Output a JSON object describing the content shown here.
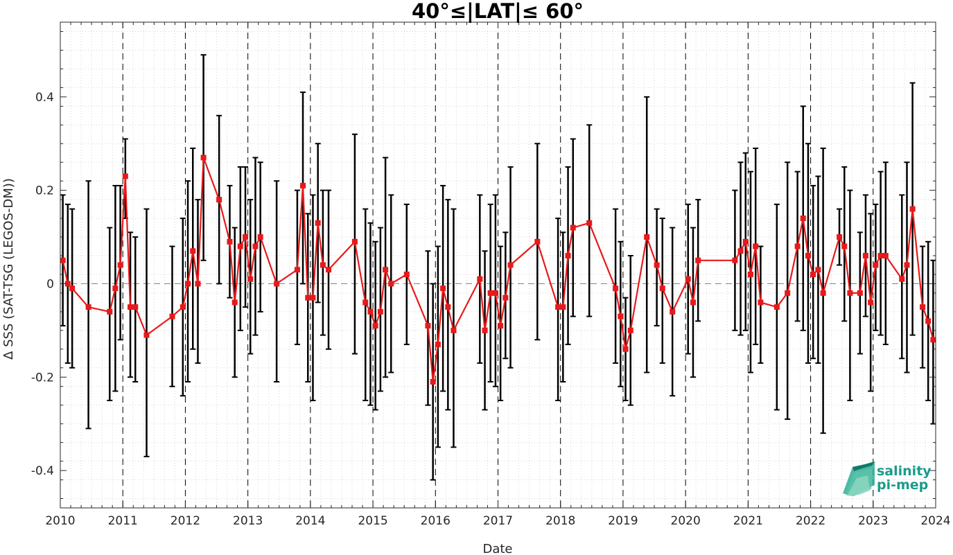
{
  "chart_data": {
    "type": "line",
    "title": "40°≤|LAT|≤ 60°",
    "xlabel": "Date",
    "ylabel": "Δ SSS (SAT-TSG (LEGOS-DM))",
    "xlim": [
      2010,
      2024
    ],
    "ylim": [
      -0.48,
      0.56
    ],
    "x_ticks": [
      2010,
      2011,
      2012,
      2013,
      2014,
      2015,
      2016,
      2017,
      2018,
      2019,
      2020,
      2021,
      2022,
      2023,
      2024
    ],
    "x_tick_labels": [
      "2010",
      "2011",
      "2012",
      "2013",
      "2014",
      "2015",
      "2016",
      "2017",
      "2018",
      "2019",
      "2020",
      "2021",
      "2022",
      "2023",
      "2024"
    ],
    "y_ticks": [
      -0.4,
      -0.2,
      0,
      0.2,
      0.4
    ],
    "y_tick_labels": [
      "-0.4",
      "-0.2",
      "0",
      "0.2",
      "0.4"
    ],
    "grid": "minor dotted",
    "year_boundaries": "dashed vertical lines at each year",
    "zero_line": "dashed horizontal at 0",
    "line_color": "#e8191a",
    "errorbar_color": "#000000",
    "series": [
      {
        "points": [
          {
            "x": 2010.04,
            "y": 0.05,
            "lo": -0.09,
            "hi": 0.19
          },
          {
            "x": 2010.12,
            "y": 0.0,
            "lo": -0.17,
            "hi": 0.17
          },
          {
            "x": 2010.19,
            "y": -0.01,
            "lo": -0.18,
            "hi": 0.16
          },
          {
            "x": 2010.45,
            "y": -0.05,
            "lo": -0.31,
            "hi": 0.22
          },
          {
            "x": 2010.79,
            "y": -0.06,
            "lo": -0.25,
            "hi": 0.12
          },
          {
            "x": 2010.88,
            "y": -0.01,
            "lo": -0.23,
            "hi": 0.21
          },
          {
            "x": 2010.96,
            "y": 0.04,
            "lo": -0.12,
            "hi": 0.21
          },
          {
            "x": 2011.04,
            "y": 0.23,
            "lo": 0.14,
            "hi": 0.31
          },
          {
            "x": 2011.12,
            "y": -0.05,
            "lo": -0.2,
            "hi": 0.11
          },
          {
            "x": 2011.2,
            "y": -0.05,
            "lo": -0.21,
            "hi": 0.1
          },
          {
            "x": 2011.38,
            "y": -0.11,
            "lo": -0.37,
            "hi": 0.16
          },
          {
            "x": 2011.79,
            "y": -0.07,
            "lo": -0.22,
            "hi": 0.08
          },
          {
            "x": 2011.96,
            "y": -0.05,
            "lo": -0.24,
            "hi": 0.14
          },
          {
            "x": 2012.04,
            "y": 0.0,
            "lo": -0.21,
            "hi": 0.22
          },
          {
            "x": 2012.12,
            "y": 0.07,
            "lo": -0.14,
            "hi": 0.29
          },
          {
            "x": 2012.2,
            "y": 0.0,
            "lo": -0.17,
            "hi": 0.18
          },
          {
            "x": 2012.29,
            "y": 0.27,
            "lo": 0.05,
            "hi": 0.49
          },
          {
            "x": 2012.54,
            "y": 0.18,
            "lo": 0.0,
            "hi": 0.36
          },
          {
            "x": 2012.71,
            "y": 0.09,
            "lo": -0.03,
            "hi": 0.21
          },
          {
            "x": 2012.79,
            "y": -0.04,
            "lo": -0.2,
            "hi": 0.12
          },
          {
            "x": 2012.88,
            "y": 0.08,
            "lo": -0.1,
            "hi": 0.25
          },
          {
            "x": 2012.96,
            "y": 0.1,
            "lo": -0.05,
            "hi": 0.25
          },
          {
            "x": 2013.04,
            "y": 0.01,
            "lo": -0.15,
            "hi": 0.18
          },
          {
            "x": 2013.12,
            "y": 0.08,
            "lo": -0.11,
            "hi": 0.27
          },
          {
            "x": 2013.2,
            "y": 0.1,
            "lo": -0.06,
            "hi": 0.26
          },
          {
            "x": 2013.46,
            "y": 0.0,
            "lo": -0.21,
            "hi": 0.22
          },
          {
            "x": 2013.79,
            "y": 0.03,
            "lo": -0.13,
            "hi": 0.2
          },
          {
            "x": 2013.88,
            "y": 0.21,
            "lo": 0.0,
            "hi": 0.41
          },
          {
            "x": 2013.96,
            "y": -0.03,
            "lo": -0.21,
            "hi": 0.15
          },
          {
            "x": 2014.04,
            "y": -0.03,
            "lo": -0.25,
            "hi": 0.19
          },
          {
            "x": 2014.12,
            "y": 0.13,
            "lo": -0.04,
            "hi": 0.3
          },
          {
            "x": 2014.2,
            "y": 0.04,
            "lo": -0.11,
            "hi": 0.2
          },
          {
            "x": 2014.29,
            "y": 0.03,
            "lo": -0.14,
            "hi": 0.2
          },
          {
            "x": 2014.71,
            "y": 0.09,
            "lo": -0.15,
            "hi": 0.32
          },
          {
            "x": 2014.88,
            "y": -0.04,
            "lo": -0.25,
            "hi": 0.16
          },
          {
            "x": 2014.96,
            "y": -0.06,
            "lo": -0.26,
            "hi": 0.13
          },
          {
            "x": 2015.04,
            "y": -0.09,
            "lo": -0.27,
            "hi": 0.09
          },
          {
            "x": 2015.12,
            "y": -0.06,
            "lo": -0.23,
            "hi": 0.12
          },
          {
            "x": 2015.2,
            "y": 0.03,
            "lo": -0.2,
            "hi": 0.27
          },
          {
            "x": 2015.29,
            "y": 0.0,
            "lo": -0.19,
            "hi": 0.19
          },
          {
            "x": 2015.54,
            "y": 0.02,
            "lo": -0.13,
            "hi": 0.17
          },
          {
            "x": 2015.88,
            "y": -0.09,
            "lo": -0.26,
            "hi": 0.07
          },
          {
            "x": 2015.96,
            "y": -0.21,
            "lo": -0.42,
            "hi": 0.0
          },
          {
            "x": 2016.04,
            "y": -0.13,
            "lo": -0.35,
            "hi": 0.08
          },
          {
            "x": 2016.12,
            "y": -0.01,
            "lo": -0.23,
            "hi": 0.21
          },
          {
            "x": 2016.2,
            "y": -0.05,
            "lo": -0.27,
            "hi": 0.18
          },
          {
            "x": 2016.29,
            "y": -0.1,
            "lo": -0.35,
            "hi": 0.16
          },
          {
            "x": 2016.71,
            "y": 0.01,
            "lo": -0.17,
            "hi": 0.19
          },
          {
            "x": 2016.79,
            "y": -0.1,
            "lo": -0.27,
            "hi": 0.07
          },
          {
            "x": 2016.88,
            "y": -0.02,
            "lo": -0.21,
            "hi": 0.17
          },
          {
            "x": 2016.96,
            "y": -0.02,
            "lo": -0.22,
            "hi": 0.19
          },
          {
            "x": 2017.04,
            "y": -0.09,
            "lo": -0.25,
            "hi": 0.08
          },
          {
            "x": 2017.12,
            "y": -0.03,
            "lo": -0.16,
            "hi": 0.11
          },
          {
            "x": 2017.2,
            "y": 0.04,
            "lo": -0.18,
            "hi": 0.25
          },
          {
            "x": 2017.63,
            "y": 0.09,
            "lo": -0.12,
            "hi": 0.3
          },
          {
            "x": 2017.96,
            "y": -0.05,
            "lo": -0.25,
            "hi": 0.14
          },
          {
            "x": 2018.04,
            "y": -0.05,
            "lo": -0.21,
            "hi": 0.11
          },
          {
            "x": 2018.12,
            "y": 0.06,
            "lo": -0.13,
            "hi": 0.25
          },
          {
            "x": 2018.2,
            "y": 0.12,
            "lo": -0.07,
            "hi": 0.31
          },
          {
            "x": 2018.46,
            "y": 0.13,
            "lo": -0.07,
            "hi": 0.34
          },
          {
            "x": 2018.88,
            "y": -0.01,
            "lo": -0.17,
            "hi": 0.16
          },
          {
            "x": 2018.96,
            "y": -0.07,
            "lo": -0.22,
            "hi": 0.09
          },
          {
            "x": 2019.04,
            "y": -0.14,
            "lo": -0.25,
            "hi": -0.03
          },
          {
            "x": 2019.12,
            "y": -0.1,
            "lo": -0.26,
            "hi": 0.06
          },
          {
            "x": 2019.38,
            "y": 0.1,
            "lo": -0.19,
            "hi": 0.4
          },
          {
            "x": 2019.54,
            "y": 0.04,
            "lo": -0.09,
            "hi": 0.16
          },
          {
            "x": 2019.63,
            "y": -0.01,
            "lo": -0.17,
            "hi": 0.14
          },
          {
            "x": 2019.79,
            "y": -0.06,
            "lo": -0.24,
            "hi": 0.12
          },
          {
            "x": 2020.04,
            "y": 0.01,
            "lo": -0.15,
            "hi": 0.17
          },
          {
            "x": 2020.12,
            "y": -0.04,
            "lo": -0.2,
            "hi": 0.12
          },
          {
            "x": 2020.2,
            "y": 0.05,
            "lo": -0.08,
            "hi": 0.18
          },
          {
            "x": 2020.79,
            "y": 0.05,
            "lo": -0.1,
            "hi": 0.2
          },
          {
            "x": 2020.88,
            "y": 0.07,
            "lo": -0.11,
            "hi": 0.26
          },
          {
            "x": 2020.96,
            "y": 0.09,
            "lo": -0.1,
            "hi": 0.28
          },
          {
            "x": 2021.04,
            "y": 0.02,
            "lo": -0.19,
            "hi": 0.24
          },
          {
            "x": 2021.12,
            "y": 0.08,
            "lo": -0.13,
            "hi": 0.29
          },
          {
            "x": 2021.2,
            "y": -0.04,
            "lo": -0.17,
            "hi": 0.08
          },
          {
            "x": 2021.46,
            "y": -0.05,
            "lo": -0.27,
            "hi": 0.17
          },
          {
            "x": 2021.63,
            "y": -0.02,
            "lo": -0.29,
            "hi": 0.26
          },
          {
            "x": 2021.79,
            "y": 0.08,
            "lo": -0.08,
            "hi": 0.24
          },
          {
            "x": 2021.88,
            "y": 0.14,
            "lo": -0.1,
            "hi": 0.38
          },
          {
            "x": 2021.96,
            "y": 0.06,
            "lo": -0.17,
            "hi": 0.3
          },
          {
            "x": 2022.04,
            "y": 0.02,
            "lo": -0.16,
            "hi": 0.21
          },
          {
            "x": 2022.12,
            "y": 0.03,
            "lo": -0.17,
            "hi": 0.23
          },
          {
            "x": 2022.2,
            "y": -0.02,
            "lo": -0.32,
            "hi": 0.29
          },
          {
            "x": 2022.46,
            "y": 0.1,
            "lo": 0.04,
            "hi": 0.16
          },
          {
            "x": 2022.54,
            "y": 0.08,
            "lo": -0.08,
            "hi": 0.25
          },
          {
            "x": 2022.63,
            "y": -0.02,
            "lo": -0.25,
            "hi": 0.2
          },
          {
            "x": 2022.79,
            "y": -0.02,
            "lo": -0.15,
            "hi": 0.11
          },
          {
            "x": 2022.88,
            "y": 0.06,
            "lo": -0.07,
            "hi": 0.19
          },
          {
            "x": 2022.96,
            "y": -0.04,
            "lo": -0.23,
            "hi": 0.15
          },
          {
            "x": 2023.04,
            "y": 0.04,
            "lo": -0.1,
            "hi": 0.17
          },
          {
            "x": 2023.12,
            "y": 0.06,
            "lo": -0.11,
            "hi": 0.24
          },
          {
            "x": 2023.2,
            "y": 0.06,
            "lo": -0.13,
            "hi": 0.26
          },
          {
            "x": 2023.46,
            "y": 0.01,
            "lo": -0.16,
            "hi": 0.19
          },
          {
            "x": 2023.54,
            "y": 0.04,
            "lo": -0.19,
            "hi": 0.26
          },
          {
            "x": 2023.63,
            "y": 0.16,
            "lo": -0.11,
            "hi": 0.43
          },
          {
            "x": 2023.79,
            "y": -0.05,
            "lo": -0.18,
            "hi": 0.08
          },
          {
            "x": 2023.88,
            "y": -0.08,
            "lo": -0.25,
            "hi": 0.09
          },
          {
            "x": 2023.96,
            "y": -0.12,
            "lo": -0.3,
            "hi": 0.05
          }
        ]
      }
    ]
  },
  "logo": {
    "line1": "salinity",
    "line2": "pi-mep",
    "color": "#1a9b8a"
  }
}
